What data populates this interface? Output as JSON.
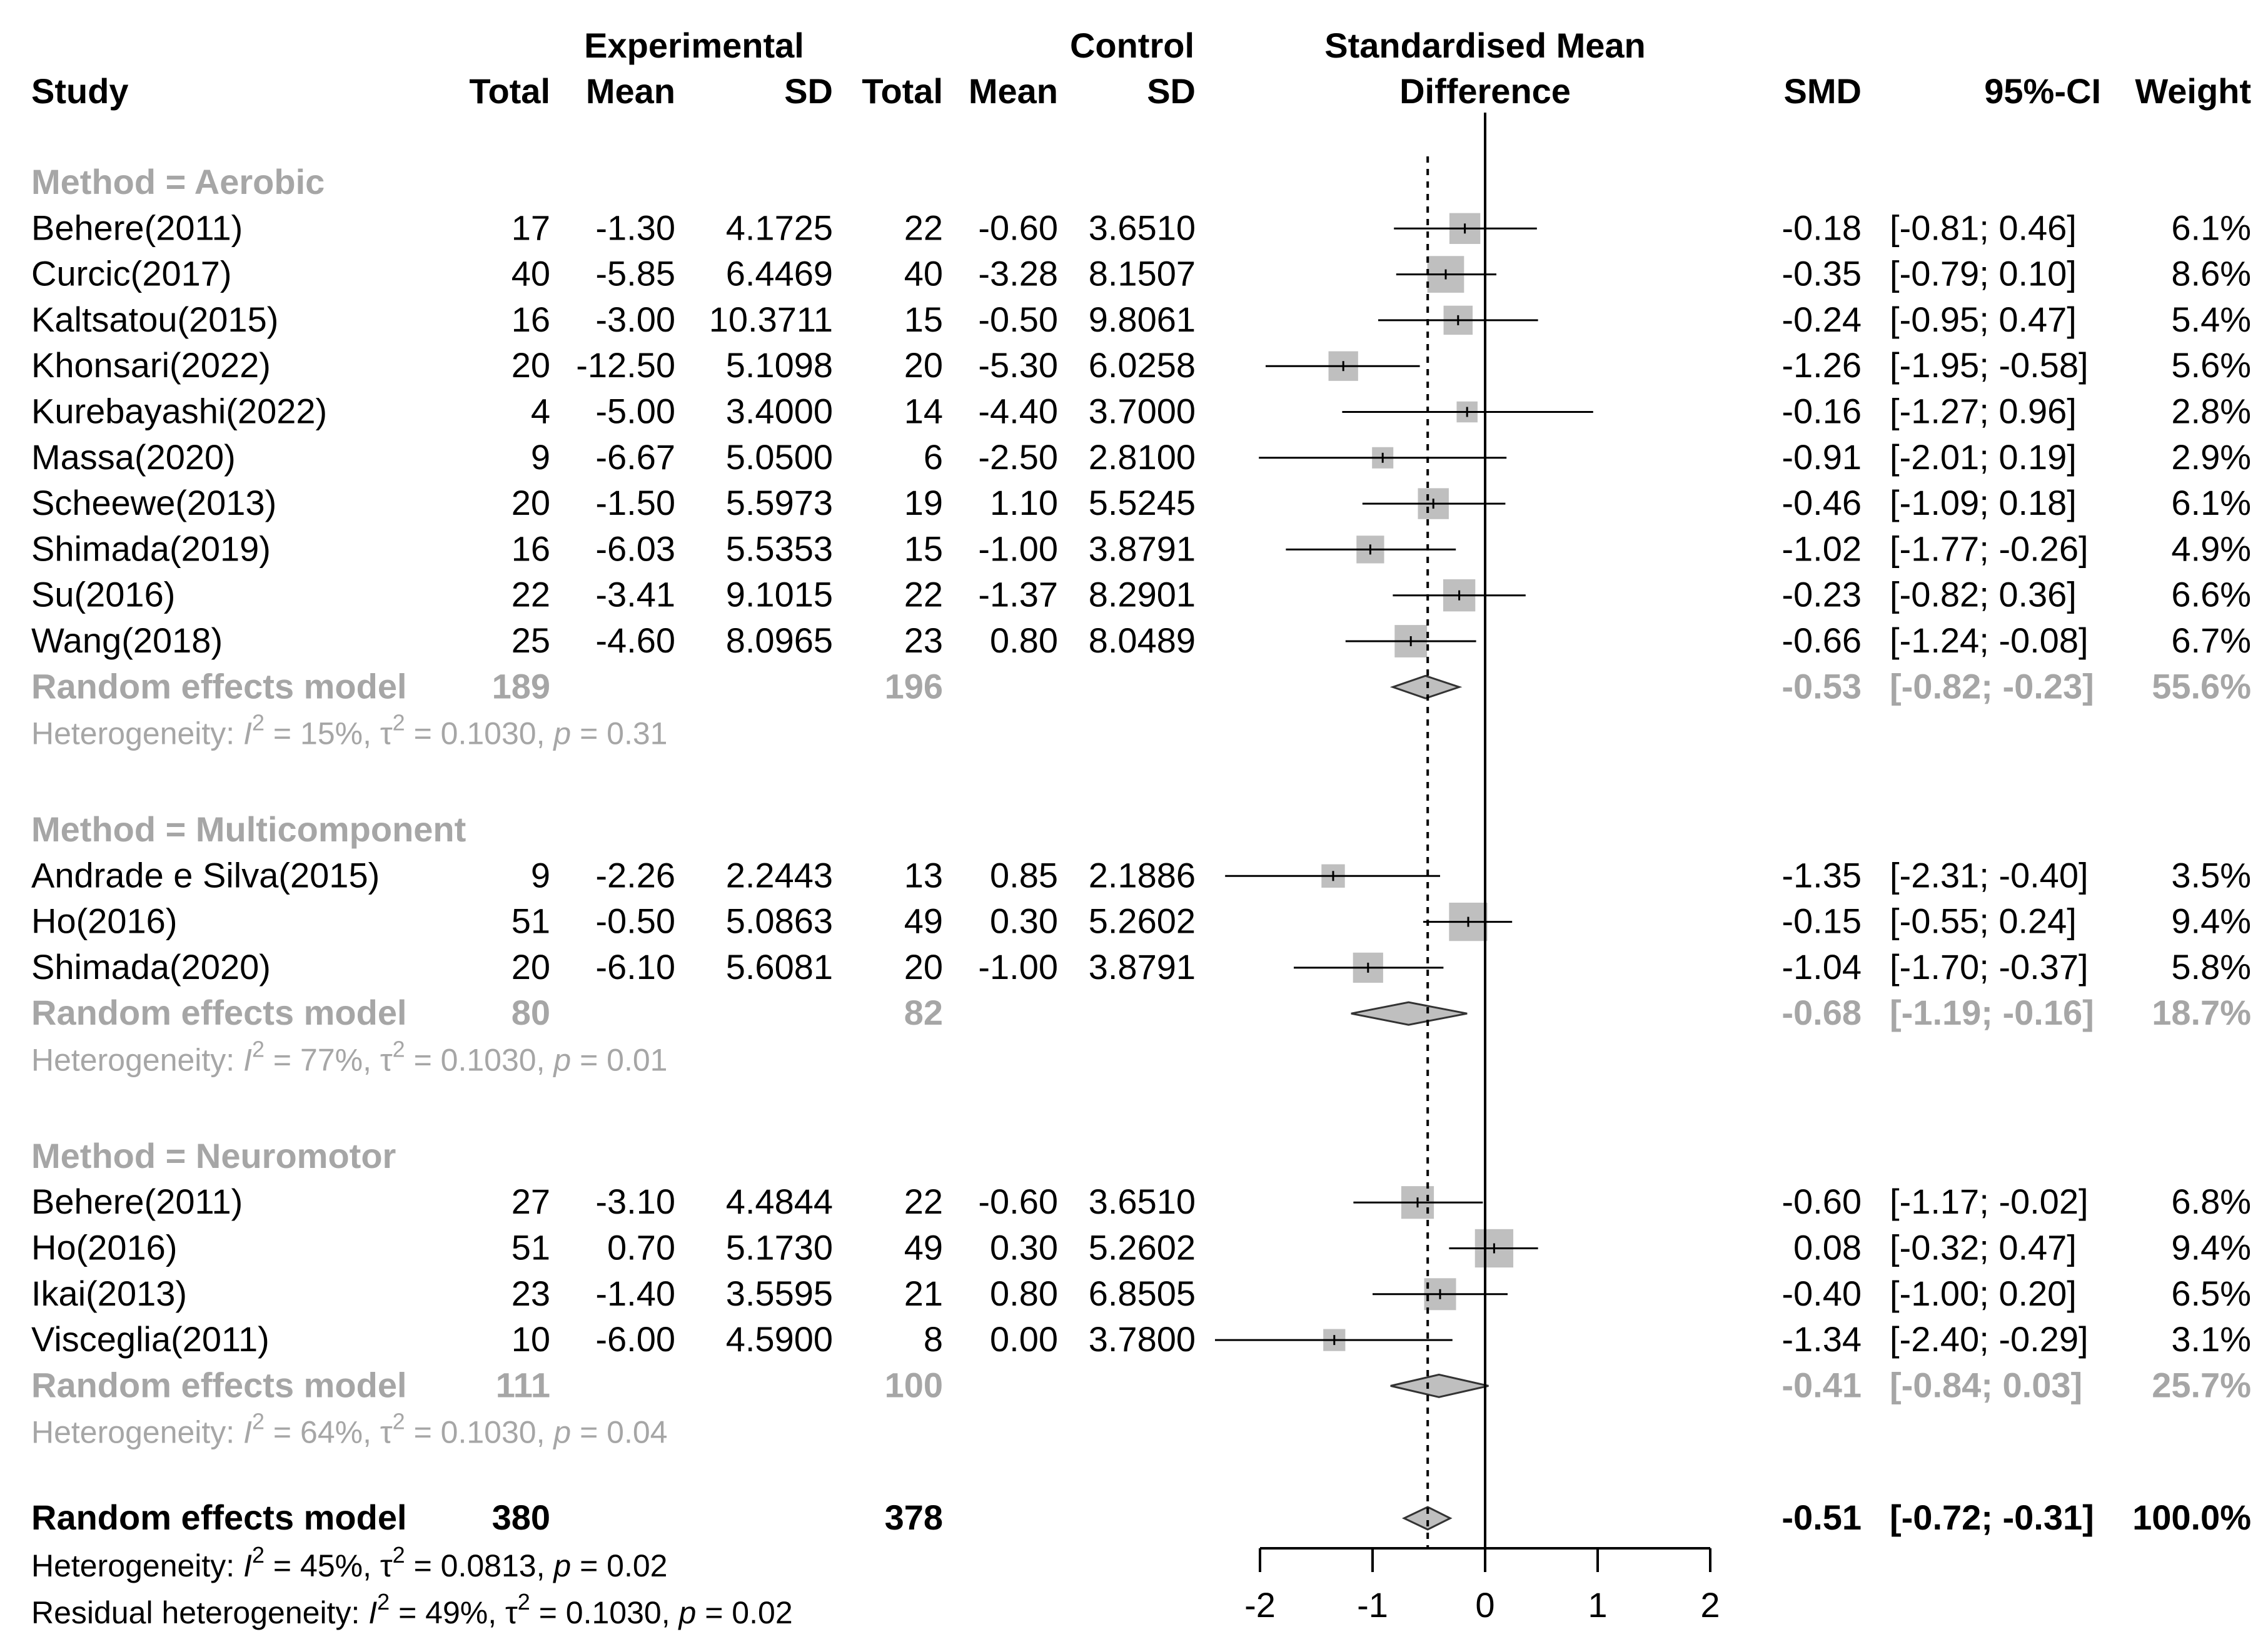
{
  "header": {
    "study": "Study",
    "experimental": "Experimental",
    "control": "Control",
    "smd_title_1": "Standardised Mean",
    "smd_title_2": "Difference",
    "total": "Total",
    "mean": "Mean",
    "sd": "SD",
    "smd": "SMD",
    "ci": "95%-CI",
    "weight": "Weight"
  },
  "groups": [
    {
      "title": "Method = Aerobic",
      "studies": [
        {
          "name": "Behere(2011)",
          "e_total": "17",
          "e_mean": "-1.30",
          "e_sd": "4.1725",
          "c_total": "22",
          "c_mean": "-0.60",
          "c_sd": "3.6510",
          "smd": "-0.18",
          "ci": "[-0.81;  0.46]",
          "weight": "6.1%",
          "est": -0.18,
          "lo": -0.81,
          "hi": 0.46,
          "w": 6.1
        },
        {
          "name": "Curcic(2017)",
          "e_total": "40",
          "e_mean": "-5.85",
          "e_sd": "6.4469",
          "c_total": "40",
          "c_mean": "-3.28",
          "c_sd": "8.1507",
          "smd": "-0.35",
          "ci": "[-0.79;  0.10]",
          "weight": "8.6%",
          "est": -0.35,
          "lo": -0.79,
          "hi": 0.1,
          "w": 8.6
        },
        {
          "name": "Kaltsatou(2015)",
          "e_total": "16",
          "e_mean": "-3.00",
          "e_sd": "10.3711",
          "c_total": "15",
          "c_mean": "-0.50",
          "c_sd": "9.8061",
          "smd": "-0.24",
          "ci": "[-0.95;  0.47]",
          "weight": "5.4%",
          "est": -0.24,
          "lo": -0.95,
          "hi": 0.47,
          "w": 5.4
        },
        {
          "name": "Khonsari(2022)",
          "e_total": "20",
          "e_mean": "-12.50",
          "e_sd": "5.1098",
          "c_total": "20",
          "c_mean": "-5.30",
          "c_sd": "6.0258",
          "smd": "-1.26",
          "ci": "[-1.95; -0.58]",
          "weight": "5.6%",
          "est": -1.26,
          "lo": -1.95,
          "hi": -0.58,
          "w": 5.6
        },
        {
          "name": "Kurebayashi(2022)",
          "e_total": "4",
          "e_mean": "-5.00",
          "e_sd": "3.4000",
          "c_total": "14",
          "c_mean": "-4.40",
          "c_sd": "3.7000",
          "smd": "-0.16",
          "ci": "[-1.27;  0.96]",
          "weight": "2.8%",
          "est": -0.16,
          "lo": -1.27,
          "hi": 0.96,
          "w": 2.8
        },
        {
          "name": "Massa(2020)",
          "e_total": "9",
          "e_mean": "-6.67",
          "e_sd": "5.0500",
          "c_total": "6",
          "c_mean": "-2.50",
          "c_sd": "2.8100",
          "smd": "-0.91",
          "ci": "[-2.01;  0.19]",
          "weight": "2.9%",
          "est": -0.91,
          "lo": -2.01,
          "hi": 0.19,
          "w": 2.9
        },
        {
          "name": "Scheewe(2013)",
          "e_total": "20",
          "e_mean": "-1.50",
          "e_sd": "5.5973",
          "c_total": "19",
          "c_mean": "1.10",
          "c_sd": "5.5245",
          "smd": "-0.46",
          "ci": "[-1.09;  0.18]",
          "weight": "6.1%",
          "est": -0.46,
          "lo": -1.09,
          "hi": 0.18,
          "w": 6.1
        },
        {
          "name": "Shimada(2019)",
          "e_total": "16",
          "e_mean": "-6.03",
          "e_sd": "5.5353",
          "c_total": "15",
          "c_mean": "-1.00",
          "c_sd": "3.8791",
          "smd": "-1.02",
          "ci": "[-1.77; -0.26]",
          "weight": "4.9%",
          "est": -1.02,
          "lo": -1.77,
          "hi": -0.26,
          "w": 4.9
        },
        {
          "name": "Su(2016)",
          "e_total": "22",
          "e_mean": "-3.41",
          "e_sd": "9.1015",
          "c_total": "22",
          "c_mean": "-1.37",
          "c_sd": "8.2901",
          "smd": "-0.23",
          "ci": "[-0.82;  0.36]",
          "weight": "6.6%",
          "est": -0.23,
          "lo": -0.82,
          "hi": 0.36,
          "w": 6.6
        },
        {
          "name": "Wang(2018)",
          "e_total": "25",
          "e_mean": "-4.60",
          "e_sd": "8.0965",
          "c_total": "23",
          "c_mean": "0.80",
          "c_sd": "8.0489",
          "smd": "-0.66",
          "ci": "[-1.24; -0.08]",
          "weight": "6.7%",
          "est": -0.66,
          "lo": -1.24,
          "hi": -0.08,
          "w": 6.7
        }
      ],
      "model": {
        "label": "Random effects model",
        "e_total": "189",
        "c_total": "196",
        "smd": "-0.53",
        "ci": "[-0.82; -0.23]",
        "weight": "55.6%",
        "est": -0.53,
        "lo": -0.82,
        "hi": -0.23
      },
      "het": {
        "prefix": "Heterogeneity: ",
        "i_symbol": "I",
        "sup": "2",
        "i2": " = 15%, ",
        "tau": "τ",
        "tau_val": " = 0.1030, ",
        "p": "p",
        "p_val": " = 0.31"
      }
    },
    {
      "title": "Method = Multicomponent",
      "studies": [
        {
          "name": "Andrade e Silva(2015)",
          "e_total": "9",
          "e_mean": "-2.26",
          "e_sd": "2.2443",
          "c_total": "13",
          "c_mean": "0.85",
          "c_sd": "2.1886",
          "smd": "-1.35",
          "ci": "[-2.31; -0.40]",
          "weight": "3.5%",
          "est": -1.35,
          "lo": -2.31,
          "hi": -0.4,
          "w": 3.5
        },
        {
          "name": "Ho(2016)",
          "e_total": "51",
          "e_mean": "-0.50",
          "e_sd": "5.0863",
          "c_total": "49",
          "c_mean": "0.30",
          "c_sd": "5.2602",
          "smd": "-0.15",
          "ci": "[-0.55;  0.24]",
          "weight": "9.4%",
          "est": -0.15,
          "lo": -0.55,
          "hi": 0.24,
          "w": 9.4
        },
        {
          "name": "Shimada(2020)",
          "e_total": "20",
          "e_mean": "-6.10",
          "e_sd": "5.6081",
          "c_total": "20",
          "c_mean": "-1.00",
          "c_sd": "3.8791",
          "smd": "-1.04",
          "ci": "[-1.70; -0.37]",
          "weight": "5.8%",
          "est": -1.04,
          "lo": -1.7,
          "hi": -0.37,
          "w": 5.8
        }
      ],
      "model": {
        "label": "Random effects model",
        "e_total": "80",
        "c_total": "82",
        "smd": "-0.68",
        "ci": "[-1.19; -0.16]",
        "weight": "18.7%",
        "est": -0.68,
        "lo": -1.19,
        "hi": -0.16
      },
      "het": {
        "prefix": "Heterogeneity: ",
        "i_symbol": "I",
        "sup": "2",
        "i2": " = 77%, ",
        "tau": "τ",
        "tau_val": " = 0.1030, ",
        "p": "p",
        "p_val": " = 0.01"
      }
    },
    {
      "title": "Method = Neuromotor",
      "studies": [
        {
          "name": "Behere(2011)",
          "e_total": "27",
          "e_mean": "-3.10",
          "e_sd": "4.4844",
          "c_total": "22",
          "c_mean": "-0.60",
          "c_sd": "3.6510",
          "smd": "-0.60",
          "ci": "[-1.17; -0.02]",
          "weight": "6.8%",
          "est": -0.6,
          "lo": -1.17,
          "hi": -0.02,
          "w": 6.8
        },
        {
          "name": "Ho(2016)",
          "e_total": "51",
          "e_mean": "0.70",
          "e_sd": "5.1730",
          "c_total": "49",
          "c_mean": "0.30",
          "c_sd": "5.2602",
          "smd": "0.08",
          "ci": "[-0.32;  0.47]",
          "weight": "9.4%",
          "est": 0.08,
          "lo": -0.32,
          "hi": 0.47,
          "w": 9.4
        },
        {
          "name": "Ikai(2013)",
          "e_total": "23",
          "e_mean": "-1.40",
          "e_sd": "3.5595",
          "c_total": "21",
          "c_mean": "0.80",
          "c_sd": "6.8505",
          "smd": "-0.40",
          "ci": "[-1.00;  0.20]",
          "weight": "6.5%",
          "est": -0.4,
          "lo": -1.0,
          "hi": 0.2,
          "w": 6.5
        },
        {
          "name": "Visceglia(2011)",
          "e_total": "10",
          "e_mean": "-6.00",
          "e_sd": "4.5900",
          "c_total": "8",
          "c_mean": "0.00",
          "c_sd": "3.7800",
          "smd": "-1.34",
          "ci": "[-2.40; -0.29]",
          "weight": "3.1%",
          "est": -1.34,
          "lo": -2.4,
          "hi": -0.29,
          "w": 3.1
        }
      ],
      "model": {
        "label": "Random effects model",
        "e_total": "111",
        "c_total": "100",
        "smd": "-0.41",
        "ci": "[-0.84;  0.03]",
        "weight": "25.7%",
        "est": -0.41,
        "lo": -0.84,
        "hi": 0.03
      },
      "het": {
        "prefix": "Heterogeneity: ",
        "i_symbol": "I",
        "sup": "2",
        "i2": " = 64%, ",
        "tau": "τ",
        "tau_val": " = 0.1030, ",
        "p": "p",
        "p_val": " = 0.04"
      }
    }
  ],
  "overall": {
    "label": "Random effects model",
    "e_total": "380",
    "c_total": "378",
    "smd": "-0.51",
    "ci": "[-0.72; -0.31]",
    "weight": "100.0%",
    "est": -0.51,
    "lo": -0.72,
    "hi": -0.31,
    "het": {
      "prefix": "Heterogeneity: ",
      "i_symbol": "I",
      "sup": "2",
      "i2": " = 45%, ",
      "tau": "τ",
      "tau_val": " = 0.0813, ",
      "p": "p",
      "p_val": " = 0.02"
    },
    "resid": {
      "prefix": "Residual heterogeneity: ",
      "i_symbol": "I",
      "sup": "2",
      "i2": " = 49%, ",
      "tau": "τ",
      "tau_val": " = 0.1030, ",
      "p": "p",
      "p_val": " = 0.02"
    }
  },
  "colors": {
    "text": "#000000",
    "grey": "#a6a6a6",
    "square": "#bfbfbf",
    "diamond": "#bfbfbf"
  },
  "chart_data": {
    "type": "forest",
    "measure": "Standardised Mean Difference",
    "xlim": [
      -2,
      2
    ],
    "xticks": [
      -2,
      -1,
      0,
      1,
      2
    ],
    "reference_line": 0,
    "summary_line": -0.51,
    "series": [
      {
        "name": "Behere(2011)",
        "group": "Aerobic",
        "smd": -0.18,
        "ci": [
          -0.81,
          0.46
        ],
        "weight": 6.1
      },
      {
        "name": "Curcic(2017)",
        "group": "Aerobic",
        "smd": -0.35,
        "ci": [
          -0.79,
          0.1
        ],
        "weight": 8.6
      },
      {
        "name": "Kaltsatou(2015)",
        "group": "Aerobic",
        "smd": -0.24,
        "ci": [
          -0.95,
          0.47
        ],
        "weight": 5.4
      },
      {
        "name": "Khonsari(2022)",
        "group": "Aerobic",
        "smd": -1.26,
        "ci": [
          -1.95,
          -0.58
        ],
        "weight": 5.6
      },
      {
        "name": "Kurebayashi(2022)",
        "group": "Aerobic",
        "smd": -0.16,
        "ci": [
          -1.27,
          0.96
        ],
        "weight": 2.8
      },
      {
        "name": "Massa(2020)",
        "group": "Aerobic",
        "smd": -0.91,
        "ci": [
          -2.01,
          0.19
        ],
        "weight": 2.9
      },
      {
        "name": "Scheewe(2013)",
        "group": "Aerobic",
        "smd": -0.46,
        "ci": [
          -1.09,
          0.18
        ],
        "weight": 6.1
      },
      {
        "name": "Shimada(2019)",
        "group": "Aerobic",
        "smd": -1.02,
        "ci": [
          -1.77,
          -0.26
        ],
        "weight": 4.9
      },
      {
        "name": "Su(2016)",
        "group": "Aerobic",
        "smd": -0.23,
        "ci": [
          -0.82,
          0.36
        ],
        "weight": 6.6
      },
      {
        "name": "Wang(2018)",
        "group": "Aerobic",
        "smd": -0.66,
        "ci": [
          -1.24,
          -0.08
        ],
        "weight": 6.7
      },
      {
        "name": "Andrade e Silva(2015)",
        "group": "Multicomponent",
        "smd": -1.35,
        "ci": [
          -2.31,
          -0.4
        ],
        "weight": 3.5
      },
      {
        "name": "Ho(2016)",
        "group": "Multicomponent",
        "smd": -0.15,
        "ci": [
          -0.55,
          0.24
        ],
        "weight": 9.4
      },
      {
        "name": "Shimada(2020)",
        "group": "Multicomponent",
        "smd": -1.04,
        "ci": [
          -1.7,
          -0.37
        ],
        "weight": 5.8
      },
      {
        "name": "Behere(2011)",
        "group": "Neuromotor",
        "smd": -0.6,
        "ci": [
          -1.17,
          -0.02
        ],
        "weight": 6.8
      },
      {
        "name": "Ho(2016)",
        "group": "Neuromotor",
        "smd": 0.08,
        "ci": [
          -0.32,
          0.47
        ],
        "weight": 9.4
      },
      {
        "name": "Ikai(2013)",
        "group": "Neuromotor",
        "smd": -0.4,
        "ci": [
          -1.0,
          0.2
        ],
        "weight": 6.5
      },
      {
        "name": "Visceglia(2011)",
        "group": "Neuromotor",
        "smd": -1.34,
        "ci": [
          -2.4,
          -0.29
        ],
        "weight": 3.1
      }
    ],
    "subgroup_models": [
      {
        "group": "Aerobic",
        "smd": -0.53,
        "ci": [
          -0.82,
          -0.23
        ],
        "weight": 55.6
      },
      {
        "group": "Multicomponent",
        "smd": -0.68,
        "ci": [
          -1.19,
          -0.16
        ],
        "weight": 18.7
      },
      {
        "group": "Neuromotor",
        "smd": -0.41,
        "ci": [
          -0.84,
          0.03
        ],
        "weight": 25.7
      }
    ],
    "overall_model": {
      "smd": -0.51,
      "ci": [
        -0.72,
        -0.31
      ],
      "weight": 100.0
    }
  }
}
